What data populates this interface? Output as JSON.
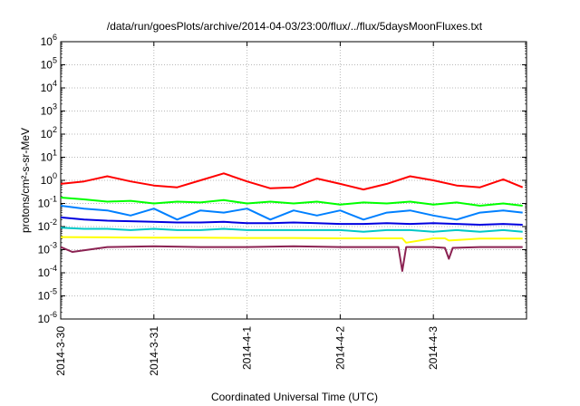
{
  "chart_data": {
    "type": "line",
    "title": "/data/run/goesPlots/archive/2014-04-03/23:00/flux/../flux/5daysMoonFluxes.txt",
    "xlabel": "Coordinated Universal Time (UTC)",
    "ylabel": "protons/cm²-s-sr-MeV",
    "yscale": "log",
    "ylim": [
      1e-06,
      1000000.0
    ],
    "xlim": [
      "2014-03-30",
      "2014-04-04"
    ],
    "grid": true,
    "legend": "none",
    "x_ticks": [
      "2014-3-30",
      "2014-3-31",
      "2014-4-1",
      "2014-4-2",
      "2014-4-3"
    ],
    "y_ticks": [
      {
        "base": "10",
        "exp": "6"
      },
      {
        "base": "10",
        "exp": "5"
      },
      {
        "base": "10",
        "exp": "4"
      },
      {
        "base": "10",
        "exp": "3"
      },
      {
        "base": "10",
        "exp": "2"
      },
      {
        "base": "10",
        "exp": "1"
      },
      {
        "base": "10",
        "exp": "0"
      },
      {
        "base": "10",
        "exp": "-1"
      },
      {
        "base": "10",
        "exp": "-2"
      },
      {
        "base": "10",
        "exp": "-3"
      },
      {
        "base": "10",
        "exp": "-4"
      },
      {
        "base": "10",
        "exp": "-5"
      },
      {
        "base": "10",
        "exp": "-6"
      }
    ],
    "series": [
      {
        "color": "#ff0000",
        "x": [
          "2014-03-30 00:00",
          "2014-03-30 06:00",
          "2014-03-30 12:00",
          "2014-03-30 18:00",
          "2014-03-31 00:00",
          "2014-03-31 06:00",
          "2014-03-31 12:00",
          "2014-03-31 18:00",
          "2014-04-01 00:00",
          "2014-04-01 06:00",
          "2014-04-01 12:00",
          "2014-04-01 18:00",
          "2014-04-02 00:00",
          "2014-04-02 06:00",
          "2014-04-02 12:00",
          "2014-04-02 18:00",
          "2014-04-03 00:00",
          "2014-04-03 06:00",
          "2014-04-03 12:00",
          "2014-04-03 18:00",
          "2014-04-03 23:00"
        ],
        "y": [
          0.7,
          0.9,
          1.5,
          0.9,
          0.6,
          0.5,
          1.0,
          2.0,
          0.9,
          0.45,
          0.5,
          1.2,
          0.7,
          0.4,
          0.7,
          1.5,
          1.0,
          0.6,
          0.5,
          1.1,
          0.5
        ]
      },
      {
        "color": "#00ff00",
        "x": [
          "2014-03-30 00:00",
          "2014-03-30 06:00",
          "2014-03-30 12:00",
          "2014-03-30 18:00",
          "2014-03-31 00:00",
          "2014-03-31 06:00",
          "2014-03-31 12:00",
          "2014-03-31 18:00",
          "2014-04-01 00:00",
          "2014-04-01 06:00",
          "2014-04-01 12:00",
          "2014-04-01 18:00",
          "2014-04-02 00:00",
          "2014-04-02 06:00",
          "2014-04-02 12:00",
          "2014-04-02 18:00",
          "2014-04-03 00:00",
          "2014-04-03 06:00",
          "2014-04-03 12:00",
          "2014-04-03 18:00",
          "2014-04-03 23:00"
        ],
        "y": [
          0.18,
          0.15,
          0.12,
          0.13,
          0.1,
          0.12,
          0.11,
          0.14,
          0.1,
          0.12,
          0.1,
          0.12,
          0.09,
          0.11,
          0.1,
          0.12,
          0.09,
          0.11,
          0.08,
          0.1,
          0.08
        ]
      },
      {
        "color": "#0080ff",
        "x": [
          "2014-03-30 00:00",
          "2014-03-30 06:00",
          "2014-03-30 12:00",
          "2014-03-30 18:00",
          "2014-03-31 00:00",
          "2014-03-31 06:00",
          "2014-03-31 12:00",
          "2014-03-31 18:00",
          "2014-04-01 00:00",
          "2014-04-01 06:00",
          "2014-04-01 12:00",
          "2014-04-01 18:00",
          "2014-04-02 00:00",
          "2014-04-02 06:00",
          "2014-04-02 12:00",
          "2014-04-02 18:00",
          "2014-04-03 00:00",
          "2014-04-03 06:00",
          "2014-04-03 12:00",
          "2014-04-03 18:00",
          "2014-04-03 23:00"
        ],
        "y": [
          0.08,
          0.06,
          0.05,
          0.03,
          0.06,
          0.02,
          0.05,
          0.04,
          0.06,
          0.02,
          0.05,
          0.03,
          0.05,
          0.02,
          0.04,
          0.05,
          0.03,
          0.02,
          0.04,
          0.05,
          0.04
        ]
      },
      {
        "color": "#0000e0",
        "x": [
          "2014-03-30 00:00",
          "2014-03-30 06:00",
          "2014-03-30 12:00",
          "2014-03-30 18:00",
          "2014-03-31 00:00",
          "2014-03-31 06:00",
          "2014-03-31 12:00",
          "2014-03-31 18:00",
          "2014-04-01 00:00",
          "2014-04-01 06:00",
          "2014-04-01 12:00",
          "2014-04-01 18:00",
          "2014-04-02 00:00",
          "2014-04-02 06:00",
          "2014-04-02 12:00",
          "2014-04-02 18:00",
          "2014-04-03 00:00",
          "2014-04-03 06:00",
          "2014-04-03 12:00",
          "2014-04-03 18:00",
          "2014-04-03 23:00"
        ],
        "y": [
          0.025,
          0.02,
          0.018,
          0.017,
          0.016,
          0.015,
          0.015,
          0.016,
          0.014,
          0.014,
          0.015,
          0.014,
          0.013,
          0.013,
          0.014,
          0.013,
          0.014,
          0.013,
          0.012,
          0.013,
          0.012
        ]
      },
      {
        "color": "#00c8c8",
        "x": [
          "2014-03-30 00:00",
          "2014-03-30 06:00",
          "2014-03-30 12:00",
          "2014-03-30 18:00",
          "2014-03-31 00:00",
          "2014-03-31 06:00",
          "2014-03-31 12:00",
          "2014-03-31 18:00",
          "2014-04-01 00:00",
          "2014-04-01 06:00",
          "2014-04-01 12:00",
          "2014-04-01 18:00",
          "2014-04-02 00:00",
          "2014-04-02 06:00",
          "2014-04-02 12:00",
          "2014-04-02 18:00",
          "2014-04-03 00:00",
          "2014-04-03 06:00",
          "2014-04-03 12:00",
          "2014-04-03 18:00",
          "2014-04-03 23:00"
        ],
        "y": [
          0.009,
          0.008,
          0.008,
          0.007,
          0.008,
          0.007,
          0.007,
          0.008,
          0.007,
          0.007,
          0.007,
          0.007,
          0.007,
          0.006,
          0.007,
          0.007,
          0.006,
          0.007,
          0.006,
          0.007,
          0.006
        ]
      },
      {
        "color": "#ffff00",
        "x": [
          "2014-03-30 00:00",
          "2014-03-30 12:00",
          "2014-03-31 00:00",
          "2014-03-31 12:00",
          "2014-04-01 00:00",
          "2014-04-01 12:00",
          "2014-04-02 00:00",
          "2014-04-02 12:00",
          "2014-04-02 16:00",
          "2014-04-02 17:00",
          "2014-04-03 00:00",
          "2014-04-03 03:00",
          "2014-04-03 04:00",
          "2014-04-03 12:00",
          "2014-04-03 23:00"
        ],
        "y": [
          0.0035,
          0.0034,
          0.0033,
          0.0033,
          0.0032,
          0.0032,
          0.0031,
          0.0031,
          0.0031,
          0.002,
          0.0031,
          0.0031,
          0.0025,
          0.003,
          0.003
        ]
      },
      {
        "color": "#8b2252",
        "x": [
          "2014-03-30 00:00",
          "2014-03-30 03:00",
          "2014-03-30 12:00",
          "2014-03-31 00:00",
          "2014-03-31 12:00",
          "2014-04-01 00:00",
          "2014-04-01 12:00",
          "2014-04-02 00:00",
          "2014-04-02 12:00",
          "2014-04-02 15:00",
          "2014-04-02 16:00",
          "2014-04-02 17:00",
          "2014-04-03 00:00",
          "2014-04-03 03:00",
          "2014-04-03 04:00",
          "2014-04-03 05:00",
          "2014-04-03 12:00",
          "2014-04-03 23:00"
        ],
        "y": [
          0.0013,
          0.0008,
          0.0013,
          0.0014,
          0.0013,
          0.0013,
          0.0014,
          0.0013,
          0.0013,
          0.0013,
          0.00012,
          0.0013,
          0.0013,
          0.0012,
          0.0004,
          0.0012,
          0.0013,
          0.0013
        ]
      }
    ]
  }
}
